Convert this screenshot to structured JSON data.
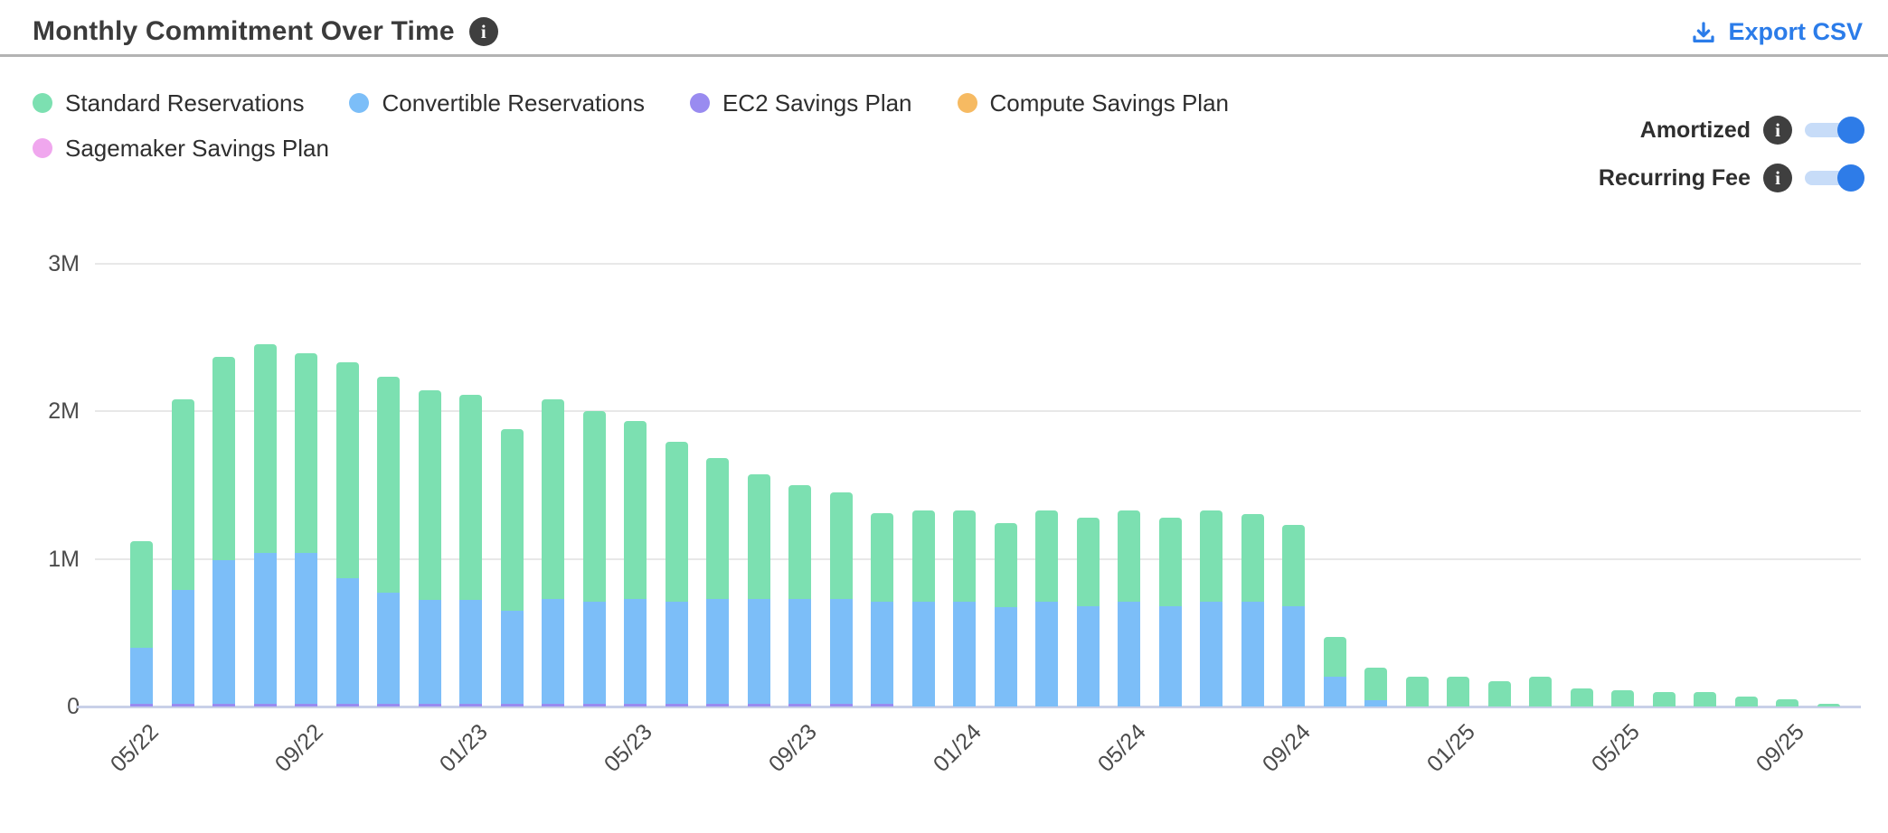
{
  "header": {
    "title": "Monthly Commitment Over Time",
    "title_info_icon": "info-circle-icon",
    "export_label": "Export CSV",
    "export_icon": "download-icon"
  },
  "icons": {
    "info_glyph": "i"
  },
  "legend": [
    {
      "label": "Standard Reservations",
      "color": "#7ce0b1"
    },
    {
      "label": "Convertible Reservations",
      "color": "#7cbef8"
    },
    {
      "label": "EC2 Savings Plan",
      "color": "#998bf0"
    },
    {
      "label": "Compute Savings Plan",
      "color": "#f6ba62"
    },
    {
      "label": "Sagemaker Savings Plan",
      "color": "#f0a7ee"
    }
  ],
  "toggles": [
    {
      "label": "Amortized",
      "state": "on",
      "info_icon": "info-circle-icon"
    },
    {
      "label": "Recurring Fee",
      "state": "on",
      "info_icon": "info-circle-icon"
    }
  ],
  "chart_data": {
    "type": "bar",
    "stacked": true,
    "unit": "M",
    "ylim": [
      0,
      3
    ],
    "grid": "horizontal",
    "y_ticks": [
      {
        "label": "3M",
        "value": 3
      },
      {
        "label": "2M",
        "value": 2
      },
      {
        "label": "1M",
        "value": 1
      },
      {
        "label": "0",
        "value": 0
      }
    ],
    "categories": [
      "05/22",
      "06/22",
      "07/22",
      "08/22",
      "09/22",
      "10/22",
      "11/22",
      "12/22",
      "01/23",
      "02/23",
      "03/23",
      "04/23",
      "05/23",
      "06/23",
      "07/23",
      "08/23",
      "09/23",
      "10/23",
      "11/23",
      "12/23",
      "01/24",
      "02/24",
      "03/24",
      "04/24",
      "05/24",
      "06/24",
      "07/24",
      "08/24",
      "09/24",
      "10/24",
      "11/24",
      "12/24",
      "01/25",
      "02/25",
      "03/25",
      "04/25",
      "05/25",
      "06/25",
      "07/25",
      "08/25",
      "09/25",
      "10/25"
    ],
    "x_label_every": 4,
    "x_labels_shown": [
      "05/22",
      "09/22",
      "01/23",
      "05/23",
      "09/23",
      "01/24",
      "05/24",
      "09/24",
      "01/25",
      "05/25",
      "09/25"
    ],
    "series": [
      {
        "name": "EC2 Savings Plan",
        "color": "#998bf0",
        "values": [
          0.02,
          0.02,
          0.02,
          0.02,
          0.02,
          0.02,
          0.02,
          0.02,
          0.02,
          0.02,
          0.02,
          0.02,
          0.02,
          0.02,
          0.02,
          0.02,
          0.02,
          0.02,
          0.02,
          0,
          0,
          0,
          0,
          0,
          0,
          0,
          0,
          0,
          0,
          0,
          0,
          0,
          0,
          0,
          0,
          0,
          0,
          0,
          0,
          0,
          0,
          0
        ]
      },
      {
        "name": "Convertible Reservations",
        "color": "#7cbef8",
        "values": [
          0.38,
          0.77,
          0.97,
          1.02,
          1.02,
          0.85,
          0.75,
          0.7,
          0.7,
          0.63,
          0.71,
          0.69,
          0.71,
          0.69,
          0.71,
          0.71,
          0.71,
          0.71,
          0.69,
          0.71,
          0.71,
          0.67,
          0.71,
          0.68,
          0.71,
          0.68,
          0.71,
          0.71,
          0.68,
          0.2,
          0.04,
          0,
          0,
          0,
          0,
          0,
          0,
          0,
          0,
          0,
          0,
          0
        ]
      },
      {
        "name": "Standard Reservations",
        "color": "#7ce0b1",
        "values": [
          0.72,
          1.29,
          1.38,
          1.41,
          1.35,
          1.46,
          1.46,
          1.42,
          1.39,
          1.23,
          1.35,
          1.29,
          1.2,
          1.08,
          0.95,
          0.84,
          0.77,
          0.72,
          0.6,
          0.62,
          0.62,
          0.57,
          0.62,
          0.6,
          0.62,
          0.6,
          0.62,
          0.59,
          0.55,
          0.27,
          0.22,
          0.2,
          0.2,
          0.17,
          0.2,
          0.12,
          0.11,
          0.1,
          0.1,
          0.07,
          0.05,
          0.02
        ]
      },
      {
        "name": "Compute Savings Plan",
        "color": "#f6ba62",
        "values": [
          0,
          0,
          0,
          0,
          0,
          0,
          0,
          0,
          0,
          0,
          0,
          0,
          0,
          0,
          0,
          0,
          0,
          0,
          0,
          0,
          0,
          0,
          0,
          0,
          0,
          0,
          0,
          0,
          0,
          0,
          0,
          0,
          0,
          0,
          0,
          0,
          0,
          0,
          0,
          0,
          0,
          0
        ]
      },
      {
        "name": "Sagemaker Savings Plan",
        "color": "#f0a7ee",
        "values": [
          0,
          0,
          0,
          0,
          0,
          0,
          0,
          0,
          0,
          0,
          0,
          0,
          0,
          0,
          0,
          0,
          0,
          0,
          0,
          0,
          0,
          0,
          0,
          0,
          0,
          0,
          0,
          0,
          0,
          0,
          0,
          0,
          0,
          0,
          0,
          0,
          0,
          0,
          0,
          0,
          0,
          0
        ]
      }
    ],
    "title": "Monthly Commitment Over Time"
  },
  "colors": {
    "accent_blue": "#2b7ce9",
    "toggle_track": "#c7dcf8",
    "grid_line": "#e8e8e8",
    "axis_line": "#c9d0e8"
  }
}
